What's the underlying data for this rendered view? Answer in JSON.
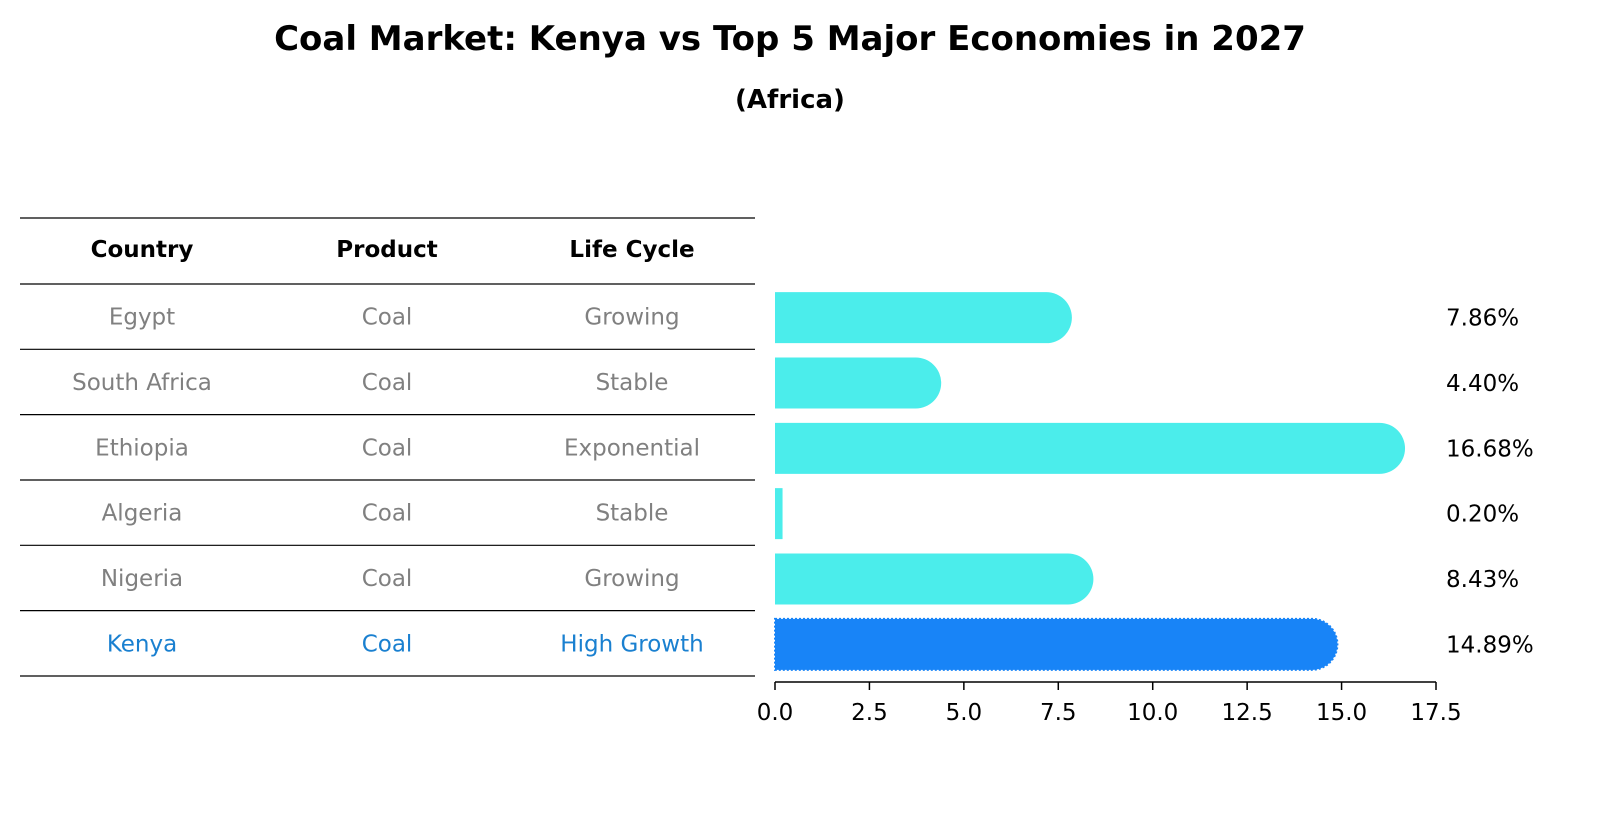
{
  "title": "Coal Market: Kenya vs Top 5 Major Economies in 2027",
  "subtitle": "(Africa)",
  "colors": {
    "bar_default": "#4BEDEB",
    "bar_highlight": "#1884F7",
    "text_muted": "#808080",
    "text_highlight": "#1A80D0",
    "text_dark": "#000000"
  },
  "table": {
    "headers": [
      "Country",
      "Product",
      "Life Cycle"
    ],
    "rows": [
      {
        "country": "Egypt",
        "product": "Coal",
        "life_cycle": "Growing",
        "highlight": false
      },
      {
        "country": "South Africa",
        "product": "Coal",
        "life_cycle": "Stable",
        "highlight": false
      },
      {
        "country": "Ethiopia",
        "product": "Coal",
        "life_cycle": "Exponential",
        "highlight": false
      },
      {
        "country": "Algeria",
        "product": "Coal",
        "life_cycle": "Stable",
        "highlight": false
      },
      {
        "country": "Nigeria",
        "product": "Coal",
        "life_cycle": "Growing",
        "highlight": false
      },
      {
        "country": "Kenya",
        "product": "Coal",
        "life_cycle": "High Growth",
        "highlight": true
      }
    ]
  },
  "chart_data": {
    "type": "bar",
    "orientation": "horizontal",
    "categories": [
      "Egypt",
      "South Africa",
      "Ethiopia",
      "Algeria",
      "Nigeria",
      "Kenya"
    ],
    "values": [
      7.86,
      4.4,
      16.68,
      0.2,
      8.43,
      14.89
    ],
    "value_labels": [
      "7.86%",
      "4.40%",
      "16.68%",
      "0.20%",
      "8.43%",
      "14.89%"
    ],
    "highlight_category": "Kenya",
    "xlim": [
      0,
      17.5
    ],
    "xticks": [
      0.0,
      2.5,
      5.0,
      7.5,
      10.0,
      12.5,
      15.0,
      17.5
    ],
    "xtick_labels": [
      "0.0",
      "2.5",
      "5.0",
      "7.5",
      "10.0",
      "12.5",
      "15.0",
      "17.5"
    ],
    "xlabel": "",
    "ylabel": "",
    "grid": false
  }
}
